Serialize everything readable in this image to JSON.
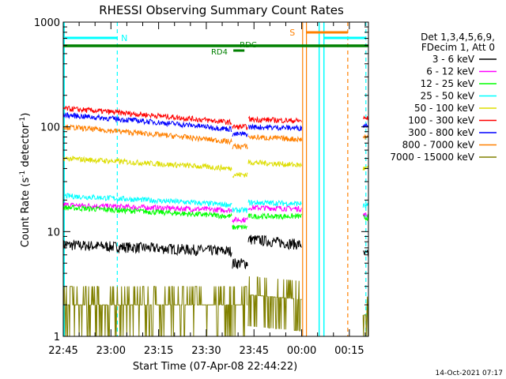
{
  "chart_data": {
    "type": "line",
    "title": "RHESSI Observing Summary Count Rates",
    "xlabel": "Start Time (07-Apr-08 22:44:22)",
    "ylabel_main": "Count Rate (s",
    "ylabel_sup1": "-1",
    "ylabel_mid": " detector",
    "ylabel_sup2": "-1",
    "ylabel_end": ")",
    "yscale": "log",
    "ylim": [
      1,
      1000
    ],
    "xlim_minutes": [
      0,
      96
    ],
    "x_ticks": [
      {
        "label": "22:45",
        "t": 0
      },
      {
        "label": "23:00",
        "t": 15
      },
      {
        "label": "23:15",
        "t": 30
      },
      {
        "label": "23:30",
        "t": 45
      },
      {
        "label": "23:45",
        "t": 60
      },
      {
        "label": "00:00",
        "t": 75
      },
      {
        "label": "00:15",
        "t": 90
      }
    ],
    "y_ticks": [
      {
        "label": "1",
        "v": 1
      },
      {
        "label": "10",
        "v": 10
      },
      {
        "label": "100",
        "v": 100
      },
      {
        "label": "1000",
        "v": 1000
      }
    ],
    "legend_header": [
      "Det 1,3,4,5,6,9,",
      "FDecim 1, Att 0"
    ],
    "series": [
      {
        "name": "3 - 6 keV",
        "color": "#000000",
        "start": 7.5,
        "end": 6.5,
        "dip": 5.0,
        "rise": 8.5
      },
      {
        "name": "6 - 12 keV",
        "color": "#ff00ff",
        "start": 18,
        "end": 16,
        "dip": 13,
        "rise": 17
      },
      {
        "name": "12 - 25 keV",
        "color": "#00ff00",
        "start": 17,
        "end": 14,
        "dip": 11,
        "rise": 14
      },
      {
        "name": "25 - 50 keV",
        "color": "#00ffff",
        "start": 22,
        "end": 18,
        "dip": 16,
        "rise": 19
      },
      {
        "name": "50 - 100 keV",
        "color": "#dddd00",
        "start": 50,
        "end": 40,
        "dip": 35,
        "rise": 46
      },
      {
        "name": "100 - 300 keV",
        "color": "#ff0000",
        "start": 150,
        "end": 110,
        "dip": 100,
        "rise": 118
      },
      {
        "name": "300 - 800 keV",
        "color": "#0000ff",
        "start": 130,
        "end": 95,
        "dip": 85,
        "rise": 100
      },
      {
        "name": "800 - 7000 keV",
        "color": "#ff8000",
        "start": 100,
        "end": 72,
        "dip": 65,
        "rise": 80
      },
      {
        "name": "7000 - 15000 keV",
        "color": "#808000",
        "start": 2,
        "end": 2,
        "dip": 2,
        "rise": 2.5
      }
    ],
    "flags": [
      {
        "label": "N",
        "color": "#00ffff"
      },
      {
        "label": "S",
        "color": "#ff8000"
      },
      {
        "label": "RD4",
        "color": "#008000"
      },
      {
        "label": "RDC",
        "color": "#008000"
      }
    ],
    "footer_timestamp": "14-Oct-2021 07:17"
  }
}
